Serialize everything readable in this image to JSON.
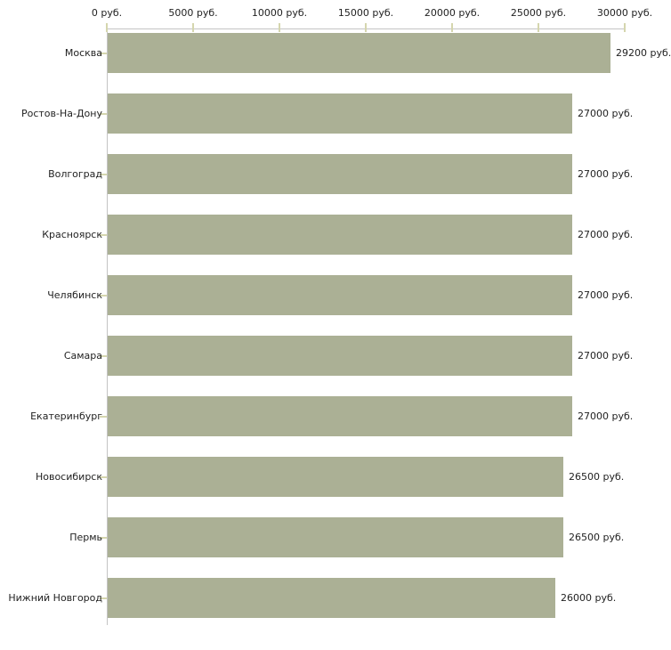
{
  "chart_data": {
    "type": "bar",
    "orientation": "horizontal",
    "title": "",
    "xlabel": "",
    "ylabel": "",
    "unit": "руб.",
    "xlim": [
      0,
      30000
    ],
    "grid": "off",
    "legend": "none",
    "categories": [
      "Москва",
      "Ростов-На-Дону",
      "Волгоград",
      "Красноярск",
      "Челябинск",
      "Самара",
      "Екатеринбург",
      "Новосибирск",
      "Пермь",
      "Нижний Новгород"
    ],
    "values": [
      29200,
      27000,
      27000,
      27000,
      27000,
      27000,
      27000,
      26500,
      26500,
      26000
    ],
    "value_labels": [
      "29200 руб.",
      "27000 руб.",
      "27000 руб.",
      "27000 руб.",
      "27000 руб.",
      "27000 руб.",
      "27000 руб.",
      "26500 руб.",
      "26500 руб.",
      "26000 руб."
    ],
    "x_tick_values": [
      0,
      5000,
      10000,
      15000,
      20000,
      25000,
      30000
    ],
    "x_tick_labels": [
      "0 руб.",
      "5000 руб.",
      "10000 руб.",
      "15000 руб.",
      "20000 руб.",
      "25000 руб.",
      "30000 руб."
    ],
    "colors": {
      "bar": "#abb095",
      "axis": "#c4c4c4",
      "tick": "#d5d6ae",
      "text": "#222222",
      "background": "#ffffff"
    }
  }
}
